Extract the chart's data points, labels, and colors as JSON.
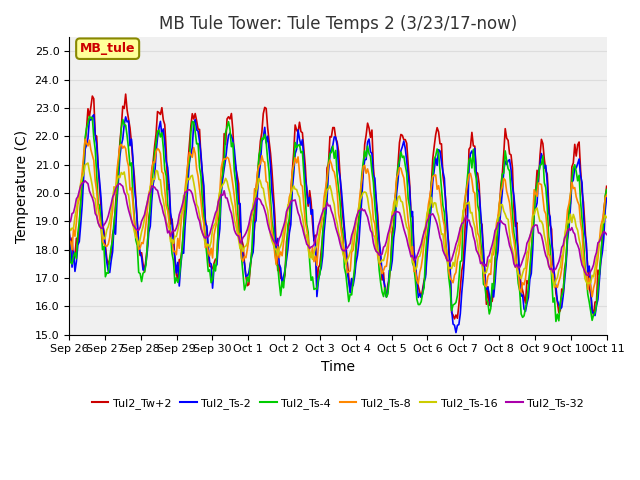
{
  "title": "MB Tule Tower: Tule Temps 2 (3/23/17-now)",
  "xlabel": "Time",
  "ylabel": "Temperature (C)",
  "ylim": [
    15.0,
    25.5
  ],
  "yticks": [
    15.0,
    16.0,
    17.0,
    18.0,
    19.0,
    20.0,
    21.0,
    22.0,
    23.0,
    24.0,
    25.0
  ],
  "xtick_labels": [
    "Sep 26",
    "Sep 27",
    "Sep 28",
    "Sep 29",
    "Sep 30",
    "Oct 1",
    "Oct 2",
    "Oct 3",
    "Oct 4",
    "Oct 5",
    "Oct 6",
    "Oct 7",
    "Oct 8",
    "Oct 9",
    "Oct 10",
    "Oct 11"
  ],
  "legend_label": "MB_tule",
  "series_labels": [
    "Tul2_Tw+2",
    "Tul2_Ts-2",
    "Tul2_Ts-4",
    "Tul2_Ts-8",
    "Tul2_Ts-16",
    "Tul2_Ts-32"
  ],
  "series_colors": [
    "#cc0000",
    "#0000ff",
    "#00cc00",
    "#ff8800",
    "#cccc00",
    "#aa00aa"
  ],
  "background_color": "#ffffff",
  "grid_color": "#dddddd",
  "title_fontsize": 12,
  "axis_fontsize": 10,
  "tick_fontsize": 8,
  "legend_box_color": "#ffff99",
  "legend_box_edge": "#888800"
}
